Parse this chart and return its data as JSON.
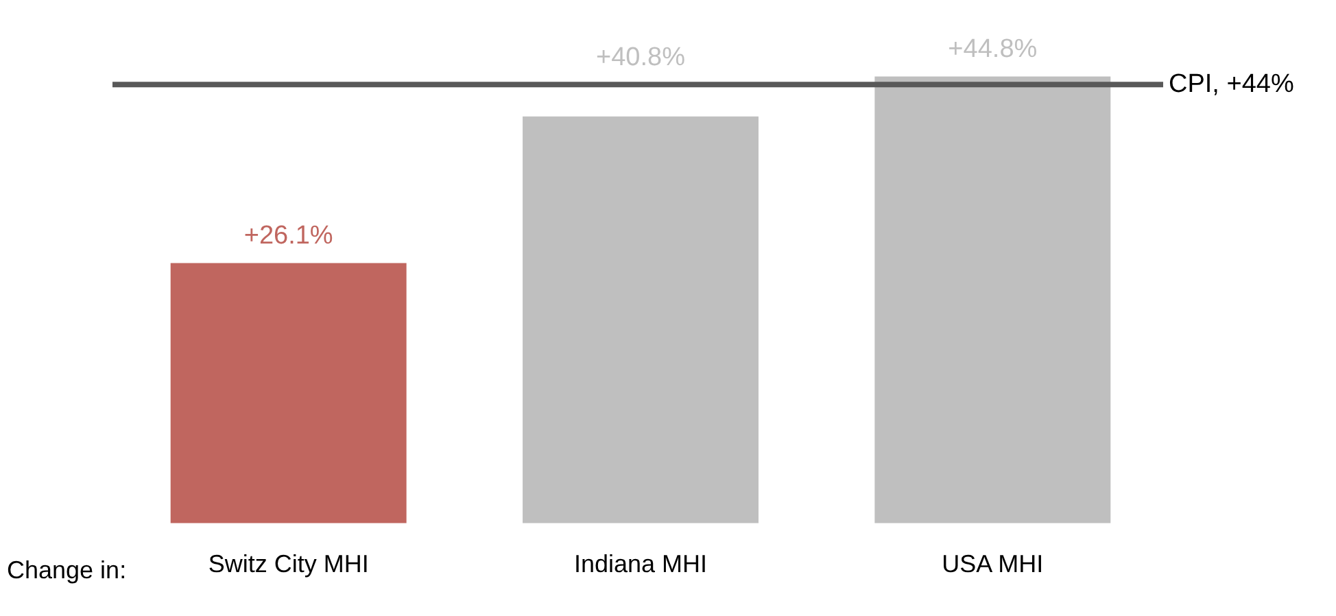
{
  "chart_data": {
    "type": "bar",
    "categories": [
      "Switz City MHI",
      "Indiana MHI",
      "USA MHI"
    ],
    "values": [
      26.1,
      40.8,
      44.8
    ],
    "colors": [
      "#c0665f",
      "#bfbfbf",
      "#bfbfbf"
    ],
    "value_labels": [
      "+26.1%",
      "+40.8%",
      "+44.8%"
    ],
    "ref_lines": [
      {
        "axis": "y",
        "value": 44,
        "label": "CPI, +44%",
        "color": "#595959"
      }
    ],
    "annotations": [
      "Change in:"
    ],
    "grid": false,
    "legend": false
  }
}
